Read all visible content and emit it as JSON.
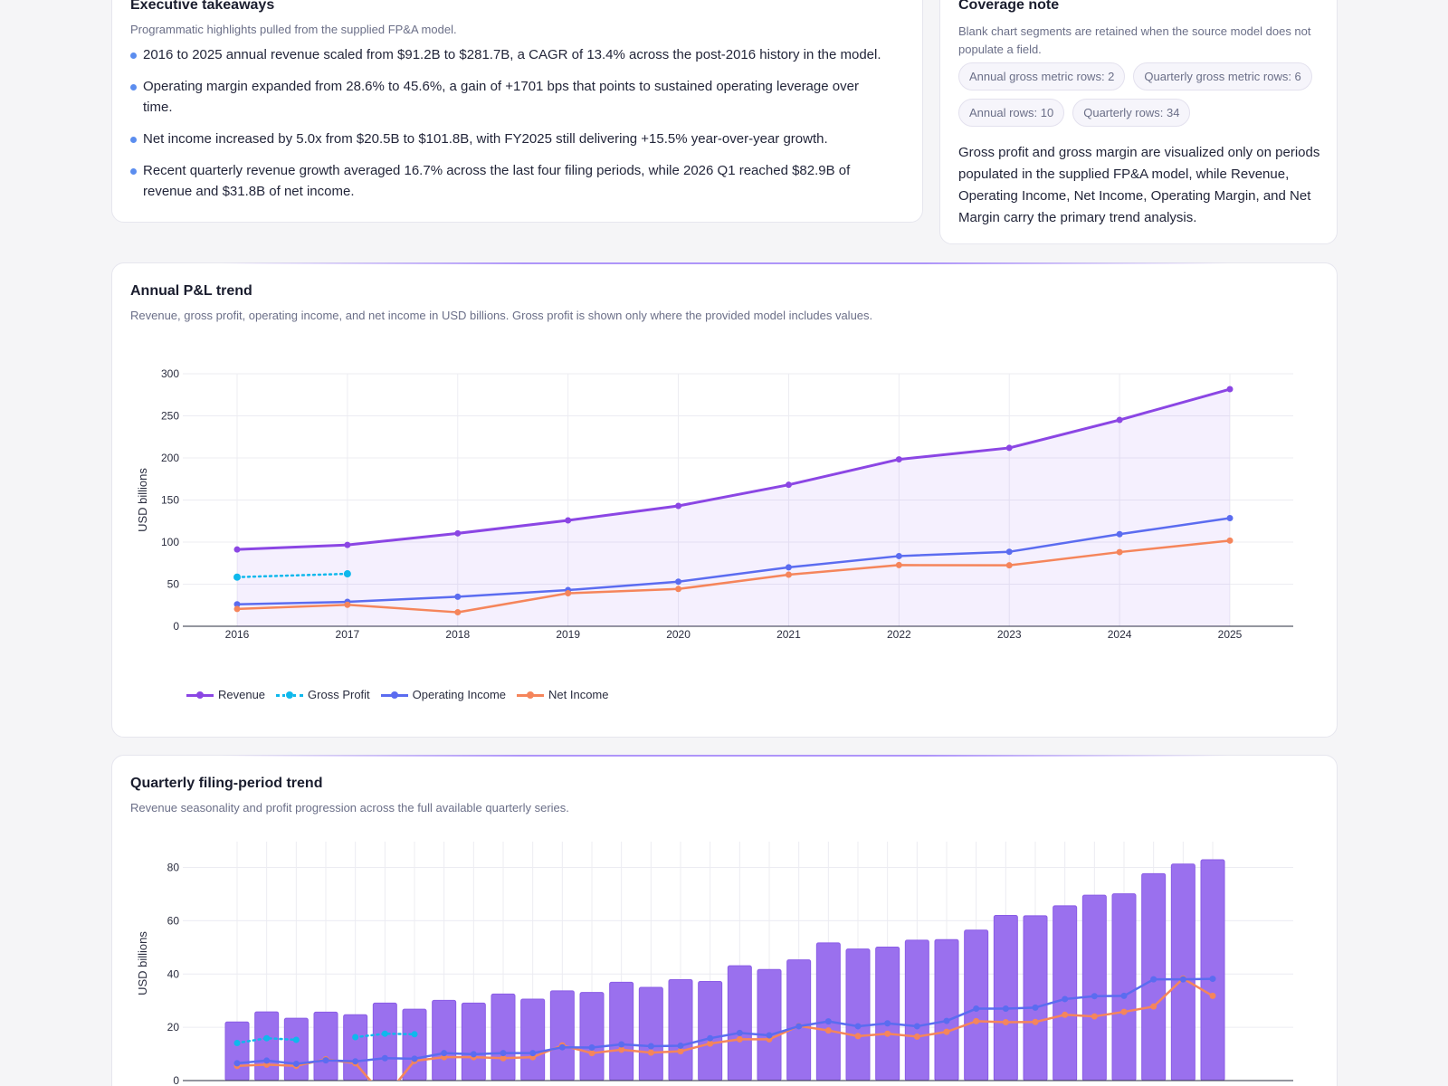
{
  "exec": {
    "title": "Executive takeaways",
    "subtitle": "Programmatic highlights pulled from the supplied FP&A model.",
    "bullets": [
      "2016 to 2025 annual revenue scaled from $91.2B to $281.7B, a CAGR of 13.4% across the post-2016 history in the model.",
      "Operating margin expanded from 28.6% to 45.6%, a gain of +1701 bps that points to sustained operating leverage over time.",
      "Net income increased by 5.0x from $20.5B to $101.8B, with FY2025 still delivering +15.5% year-over-year growth.",
      "Recent quarterly revenue growth averaged 16.7% across the last four filing periods, while 2026 Q1 reached $82.9B of revenue and $31.8B of net income."
    ]
  },
  "coverage": {
    "title": "Coverage note",
    "subtitle": "Blank chart segments are retained when the source model does not populate a field.",
    "pills": [
      "Annual gross metric rows: 2",
      "Quarterly gross metric rows: 6",
      "Annual rows: 10",
      "Quarterly rows: 34"
    ],
    "note": "Gross profit and gross margin are visualized only on periods populated in the supplied FP&A model, while Revenue, Operating Income, Net Income, Operating Margin, and Net Margin carry the primary trend analysis."
  },
  "annual": {
    "title": "Annual P&L trend",
    "subtitle": "Revenue, gross profit, operating income, and net income in USD billions. Gross profit is shown only where the provided model includes values."
  },
  "quarterly": {
    "title": "Quarterly filing-period trend",
    "subtitle": "Revenue seasonality and profit progression across the full available quarterly series."
  },
  "colors": {
    "revenue": "#7c3aed",
    "revenue_line": "#8b46e4",
    "gross_profit": "#0fb8ec",
    "operating_income": "#5b6cf0",
    "net_income": "#f5855b",
    "bar_fill": "#9a70ee"
  },
  "chart_data": [
    {
      "type": "line",
      "ylabel": "USD billions",
      "ylim": [
        0,
        300
      ],
      "yticks": [
        0,
        50,
        100,
        150,
        200,
        250,
        300
      ],
      "grid": true,
      "legend": "bottom-left",
      "x": [
        "2016",
        "2017",
        "2018",
        "2019",
        "2020",
        "2021",
        "2022",
        "2023",
        "2024",
        "2025"
      ],
      "series": [
        {
          "name": "Revenue",
          "key": "revenue",
          "values": [
            91.2,
            96.6,
            110.4,
            125.8,
            143.0,
            168.1,
            198.3,
            211.9,
            245.1,
            281.7
          ]
        },
        {
          "name": "Gross Profit",
          "key": "gross_profit",
          "values": [
            58.4,
            62.3,
            null,
            null,
            null,
            null,
            null,
            null,
            null,
            null
          ]
        },
        {
          "name": "Operating Income",
          "key": "operating_income",
          "values": [
            26.1,
            29.0,
            35.1,
            43.0,
            53.0,
            70.0,
            83.4,
            88.5,
            109.4,
            128.5
          ]
        },
        {
          "name": "Net Income",
          "key": "net_income",
          "values": [
            20.5,
            25.5,
            16.6,
            39.2,
            44.3,
            61.3,
            72.7,
            72.4,
            88.1,
            101.8
          ]
        }
      ]
    },
    {
      "type": "bar",
      "ylabel": "USD billions",
      "ylim": [
        0,
        88
      ],
      "yticks": [
        0,
        20,
        40,
        60,
        80
      ],
      "grid": true,
      "series": [
        {
          "name": "Revenue",
          "key": "revenue",
          "type": "bar",
          "values": [
            22.0,
            25.8,
            23.4,
            25.7,
            24.7,
            29.1,
            26.8,
            30.1,
            29.1,
            32.5,
            30.6,
            33.7,
            33.1,
            36.9,
            35.0,
            37.9,
            37.2,
            43.1,
            41.7,
            45.3,
            51.7,
            49.4,
            50.1,
            52.7,
            52.9,
            56.5,
            62.0,
            61.9,
            65.6,
            69.6,
            70.1,
            77.7,
            81.3,
            82.9
          ]
        },
        {
          "name": "Gross Profit",
          "key": "gross_profit",
          "type": "line",
          "values": [
            14.1,
            15.9,
            15.3,
            null,
            16.3,
            17.6,
            17.4,
            null,
            null,
            null,
            null,
            null,
            null,
            null,
            null,
            null,
            null,
            null,
            null,
            null,
            null,
            null,
            null,
            null,
            null,
            null,
            null,
            null,
            null,
            null,
            null,
            null,
            null,
            null
          ]
        },
        {
          "name": "Operating Income",
          "key": "operating_income",
          "type": "line",
          "values": [
            6.5,
            7.5,
            6.3,
            7.6,
            7.2,
            8.4,
            8.2,
            10.3,
            9.9,
            10.3,
            10.3,
            12.5,
            12.4,
            13.6,
            12.9,
            13.1,
            15.9,
            17.9,
            17.0,
            20.4,
            22.2,
            20.4,
            21.5,
            20.4,
            22.4,
            27.0,
            27.0,
            27.4,
            30.6,
            31.7,
            31.8,
            38.0,
            38.0,
            38.2
          ]
        },
        {
          "name": "Net Income",
          "key": "net_income",
          "type": "line",
          "values": [
            5.5,
            6.0,
            5.5,
            8.0,
            6.5,
            -6.3,
            7.4,
            8.8,
            8.8,
            8.4,
            8.8,
            13.2,
            10.3,
            11.6,
            10.5,
            11.0,
            13.9,
            15.5,
            15.5,
            20.5,
            18.8,
            16.7,
            17.6,
            16.5,
            18.3,
            22.3,
            21.9,
            22.0,
            24.7,
            24.1,
            25.8,
            27.8,
            38.3,
            31.8
          ]
        }
      ]
    }
  ]
}
